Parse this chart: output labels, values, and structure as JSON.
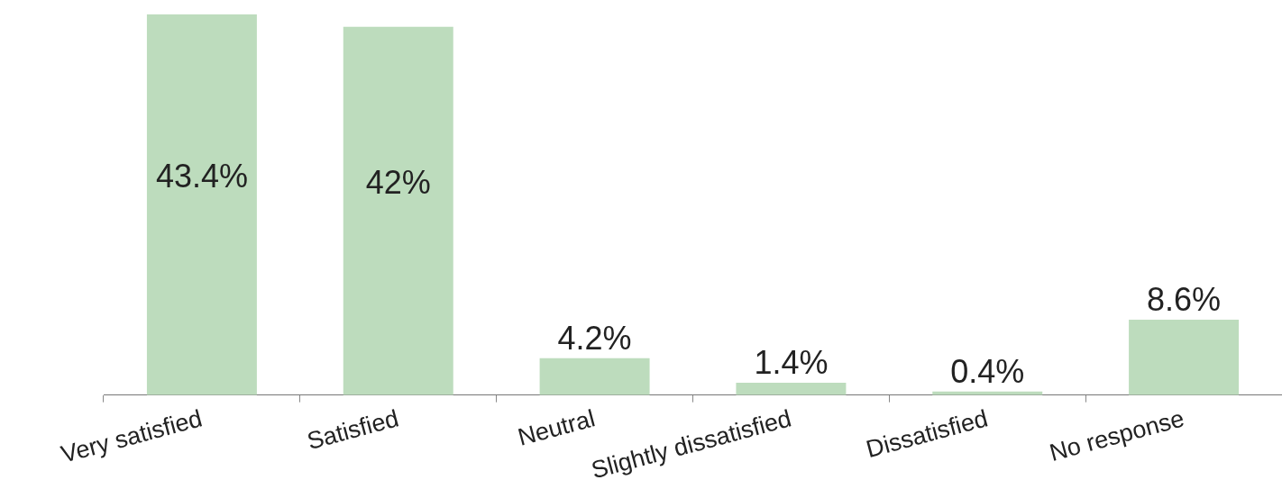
{
  "chart_data": {
    "type": "bar",
    "categories": [
      "Very satisfied",
      "Satisfied",
      "Neutral",
      "Slightly dissatisfied",
      "Dissatisfied",
      "No response"
    ],
    "values": [
      43.4,
      42,
      4.2,
      1.4,
      0.4,
      8.6
    ],
    "value_labels": [
      "43.4%",
      "42%",
      "4.2%",
      "1.4%",
      "0.4%",
      "8.6%"
    ],
    "color": "#bddcbd",
    "grid": false,
    "legend": false
  }
}
